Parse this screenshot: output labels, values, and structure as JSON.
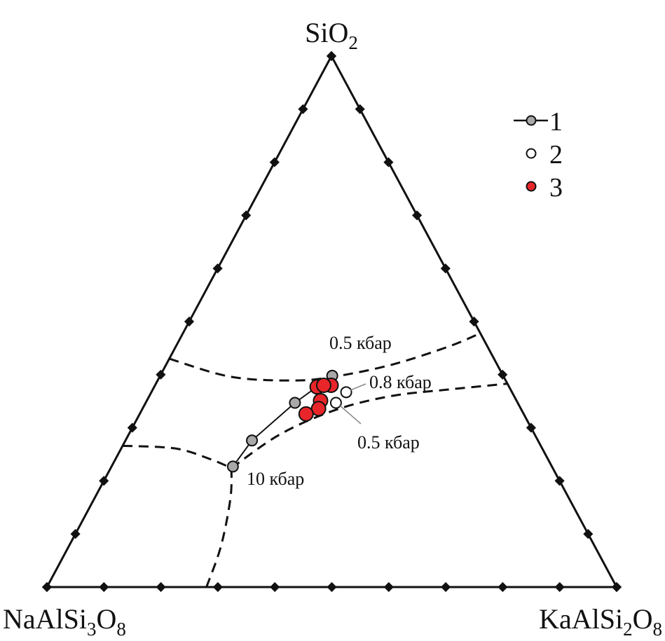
{
  "chart_data": {
    "type": "scatter",
    "subtype": "ternary",
    "vertices": {
      "top": {
        "base": "SiO",
        "sub": "2"
      },
      "left": {
        "base": "NaAlSi",
        "sub1": "3",
        "mid": "O",
        "sub2": "8"
      },
      "right": {
        "base": "KaAlSi",
        "sub1": "2",
        "mid": "O",
        "sub2": "8"
      }
    },
    "components_order": [
      "SiO2",
      "NaAlSi3O8",
      "KaAlSi2O8"
    ],
    "tick_step_percent": 10,
    "legend": {
      "placement": "top-right",
      "entries": [
        {
          "label": "1",
          "marker": "circle-line",
          "color": "#a8a8a8"
        },
        {
          "label": "2",
          "marker": "circle",
          "color": "#ffffff"
        },
        {
          "label": "3",
          "marker": "circle",
          "color": "#e8262a"
        }
      ]
    },
    "series": [
      {
        "legend": "1",
        "connected": true,
        "color": "#a8a8a8",
        "points": [
          [
            22.7,
            56.0,
            21.3
          ],
          [
            27.6,
            50.2,
            22.2
          ],
          [
            34.7,
            39.1,
            26.2
          ],
          [
            39.8,
            30.0,
            30.2
          ]
        ]
      },
      {
        "legend": "2",
        "connected": false,
        "color": "#ffffff",
        "points": [
          [
            36.7,
            29.1,
            34.2
          ],
          [
            34.7,
            31.9,
            33.4
          ]
        ]
      },
      {
        "legend": "3",
        "connected": false,
        "color": "#e8262a",
        "points": [
          [
            37.7,
            33.7,
            28.6
          ],
          [
            38.0,
            31.1,
            30.9
          ],
          [
            38.0,
            32.4,
            29.6
          ],
          [
            35.1,
            34.4,
            30.5
          ],
          [
            33.6,
            35.5,
            30.9
          ],
          [
            32.6,
            38.2,
            29.2
          ]
        ]
      }
    ],
    "boundary_curves": [
      [
        [
          43.0,
          57.0,
          0
        ],
        [
          39.6,
          47.9,
          12.5
        ],
        [
          38.9,
          37.1,
          24.0
        ],
        [
          39.7,
          29.3,
          31.0
        ],
        [
          41.9,
          18.4,
          39.7
        ],
        [
          45.3,
          6.8,
          47.9
        ],
        [
          47.8,
          0,
          52.2
        ]
      ],
      [
        [
          22.4,
          56.4,
          21.2
        ],
        [
          28.8,
          44.6,
          26.6
        ],
        [
          33.4,
          32.5,
          34.1
        ],
        [
          36.0,
          21.4,
          42.6
        ],
        [
          37.2,
          10.9,
          51.9
        ],
        [
          38.3,
          0,
          61.7
        ]
      ],
      [
        [
          26.6,
          73.4,
          0
        ],
        [
          26.1,
          64.4,
          9.5
        ],
        [
          24.1,
          59.3,
          16.6
        ],
        [
          22.4,
          56.4,
          21.2
        ]
      ],
      [
        [
          22.4,
          56.4,
          21.2
        ],
        [
          15.6,
          58.9,
          24.5
        ],
        [
          7.7,
          65.6,
          26.7
        ],
        [
          0,
          72,
          28
        ]
      ]
    ],
    "annotations": [
      {
        "text": "0.5 кбар"
      },
      {
        "text": "0.8 кбар"
      },
      {
        "text": "0.5 кбар"
      },
      {
        "text": "10 кбар"
      }
    ]
  }
}
